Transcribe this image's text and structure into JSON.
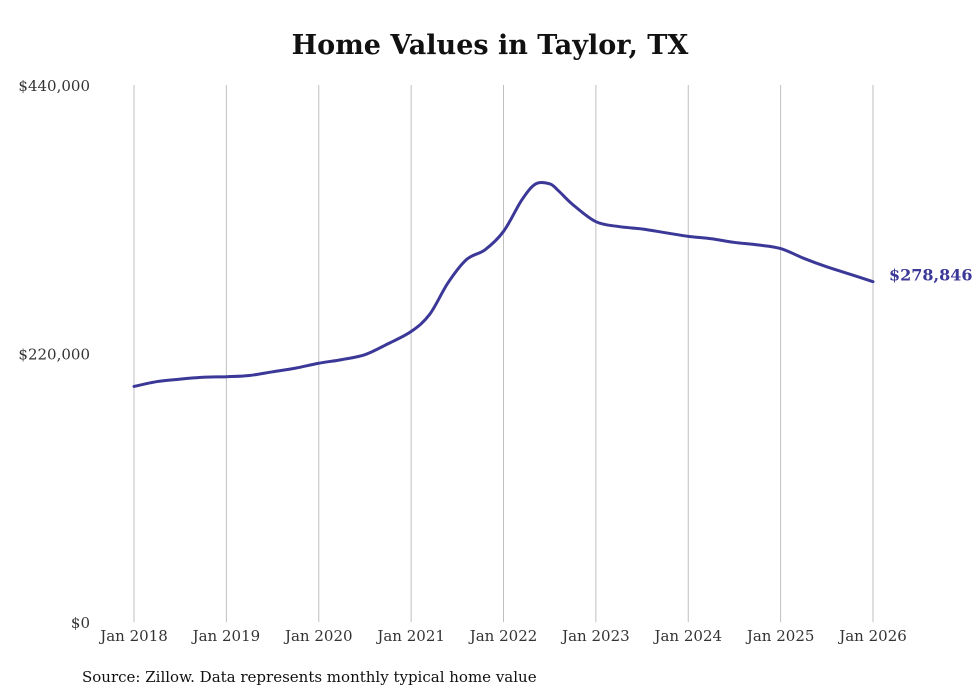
{
  "chart_data": {
    "type": "line",
    "title": "Home Values in Taylor, TX",
    "source": "Source: Zillow. Data represents monthly typical home value",
    "xlabel": "",
    "ylabel": "",
    "ylim": [
      0,
      440000
    ],
    "yticks": [
      {
        "value": 0,
        "label": "$0"
      },
      {
        "value": 220000,
        "label": "$220,000"
      },
      {
        "value": 440000,
        "label": "$440,000"
      }
    ],
    "xlim": [
      2018.0,
      2026.0
    ],
    "xticks": [
      {
        "value": 2018,
        "label": "Jan 2018"
      },
      {
        "value": 2019,
        "label": "Jan 2019"
      },
      {
        "value": 2020,
        "label": "Jan 2020"
      },
      {
        "value": 2021,
        "label": "Jan 2021"
      },
      {
        "value": 2022,
        "label": "Jan 2022"
      },
      {
        "value": 2023,
        "label": "Jan 2023"
      },
      {
        "value": 2024,
        "label": "Jan 2024"
      },
      {
        "value": 2025,
        "label": "Jan 2025"
      },
      {
        "value": 2026,
        "label": "Jan 2026"
      }
    ],
    "grid": "vertical",
    "line_color": "#3b3898",
    "series": [
      {
        "name": "",
        "x": [
          2018.0,
          2018.25,
          2018.5,
          2018.75,
          2019.0,
          2019.25,
          2019.5,
          2019.75,
          2020.0,
          2020.25,
          2020.5,
          2020.75,
          2021.0,
          2021.2,
          2021.4,
          2021.6,
          2021.8,
          2022.0,
          2022.2,
          2022.35,
          2022.5,
          2022.6,
          2022.75,
          2023.0,
          2023.25,
          2023.5,
          2023.75,
          2024.0,
          2024.25,
          2024.5,
          2024.75,
          2025.0,
          2025.25,
          2025.5,
          2025.75,
          2026.0
        ],
        "y": [
          193000,
          197000,
          199000,
          200500,
          201000,
          202000,
          205000,
          208000,
          212000,
          215000,
          219000,
          228000,
          238000,
          252000,
          278000,
          297000,
          305000,
          320000,
          346000,
          359000,
          359000,
          353000,
          342000,
          328000,
          324000,
          322000,
          319000,
          316000,
          314000,
          311000,
          309000,
          306000,
          298000,
          291000,
          285000,
          278846
        ]
      }
    ],
    "end_label": "$278,846"
  }
}
